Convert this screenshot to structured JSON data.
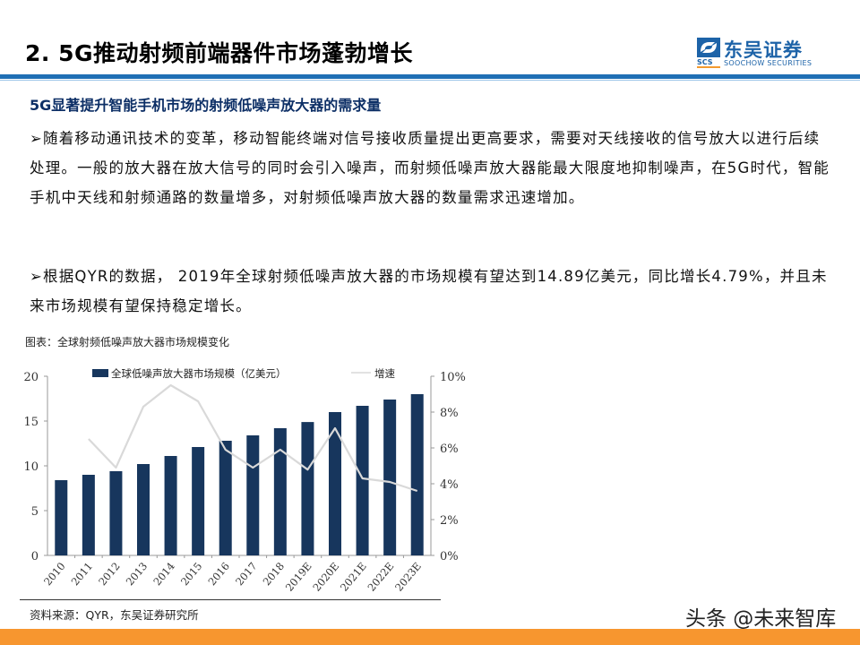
{
  "header": {
    "title": "2. 5G推动射频前端器件市场蓬勃增长",
    "logo_cn": "东吴证券",
    "logo_en": "SOOCHOW SECURITIES",
    "logo_abbr": "SCS"
  },
  "content": {
    "subtitle": "5G显著提升智能手机市场的射频低噪声放大器的需求量",
    "bullets": [
      "➢随着移动通讯技术的变革，移动智能终端对信号接收质量提出更高要求，需要对天线接收的信号放大以进行后续处理。一般的放大器在放大信号的同时会引入噪声，而射频低噪声放大器能最大限度地抑制噪声，在5G时代，智能手机中天线和射频通路的数量增多，对射频低噪声放大器的数量需求迅速增加。",
      "➢根据QYR的数据， 2019年全球射频低噪声放大器的市场规模有望达到14.89亿美元，同比增长4.79%，并且未来市场规模有望保持稳定增长。"
    ],
    "figure_title": "图表：全球射频低噪声放大器市场规模变化",
    "source": "资料来源：QYR，东吴证券研究所"
  },
  "watermark": "头条 @未来智库",
  "colors": {
    "bar": "#17365d",
    "line": "#d9d9d9",
    "accent_blue": "#1f6fb5",
    "footer_orange": "#f7962f"
  },
  "chart_data": {
    "type": "bar",
    "title": "全球射频低噪声放大器市场规模变化",
    "categories": [
      "2010",
      "2011",
      "2012",
      "2013",
      "2014",
      "2015",
      "2016",
      "2017",
      "2018",
      "2019E",
      "2020E",
      "2021E",
      "2022E",
      "2023E"
    ],
    "series": [
      {
        "name": "全球低噪声放大器市场规模（亿美元）",
        "type": "bar",
        "axis": "left",
        "values": [
          8.4,
          9.0,
          9.4,
          10.2,
          11.1,
          12.1,
          12.8,
          13.4,
          14.2,
          14.89,
          16.0,
          16.7,
          17.4,
          18.0
        ]
      },
      {
        "name": "增速",
        "type": "line",
        "axis": "right",
        "values": [
          null,
          6.5,
          4.9,
          8.3,
          9.5,
          8.6,
          5.9,
          4.9,
          5.9,
          4.79,
          7.1,
          4.3,
          4.1,
          3.6
        ]
      }
    ],
    "ylim_left": [
      0,
      20
    ],
    "yticks_left": [
      "0",
      "5",
      "10",
      "15",
      "20"
    ],
    "ylim_right": [
      0,
      10
    ],
    "yticks_right": [
      "0%",
      "2%",
      "4%",
      "6%",
      "8%",
      "10%"
    ],
    "xlabel": "",
    "ylabel": "",
    "legend_position": "top",
    "grid": false
  }
}
